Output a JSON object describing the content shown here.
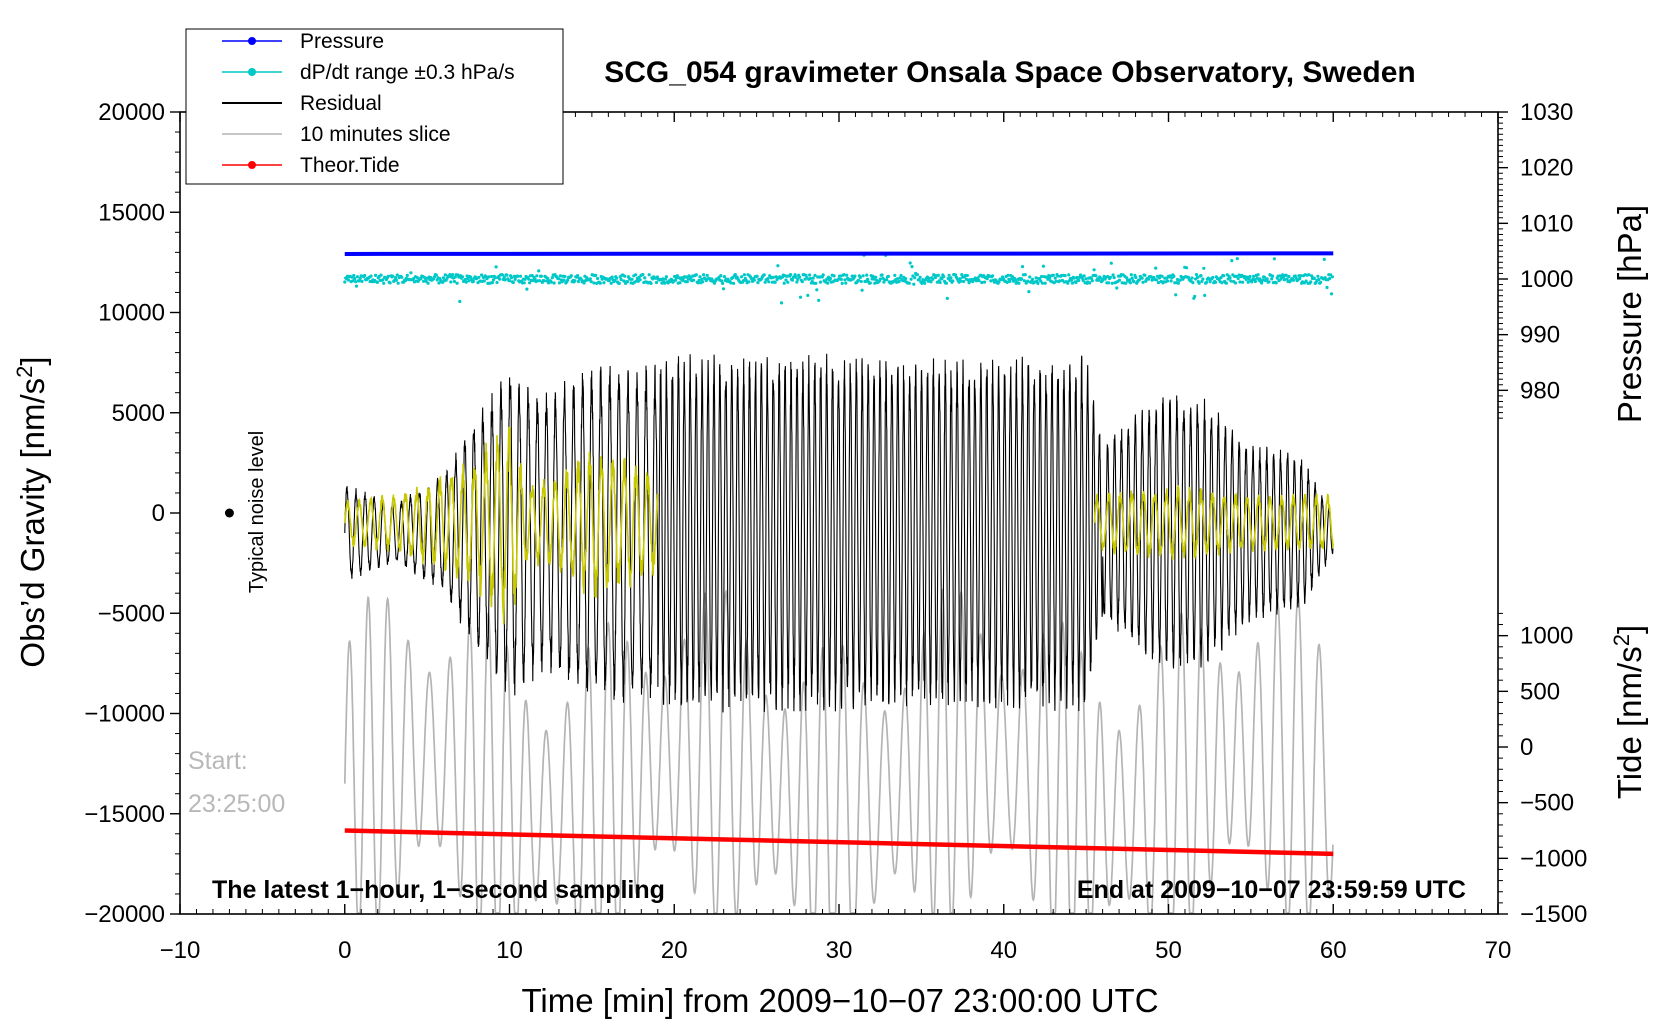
{
  "chart_data": {
    "type": "line",
    "title": "SCG_054 gravimeter Onsala Space Observatory, Sweden",
    "xlabel": "Time [min] from 2009−10−07 23:00:00 UTC",
    "ylabel_left": "Obs’d Gravity [nm/s²]",
    "ylabel_left_main": "Obs’d Gravity [nm/s",
    "ylabel_right_pressure": "Pressure [hPa]",
    "ylabel_right_tide_main": "Tide [nm/s",
    "superscript": "2",
    "close_bracket": "]",
    "xlim": [
      -10,
      70
    ],
    "ylim_left": [
      -20000,
      20000
    ],
    "ylim_pressure": [
      970,
      1030
    ],
    "ylim_tide": [
      -1500,
      1500
    ],
    "x_ticks": [
      "−10",
      "0",
      "10",
      "20",
      "30",
      "40",
      "50",
      "60",
      "70"
    ],
    "x_tick_values": [
      -10,
      0,
      10,
      20,
      30,
      40,
      50,
      60,
      70
    ],
    "y_left_ticks": [
      "20000",
      "15000",
      "10000",
      "5000",
      "0",
      "−5000",
      "−10000",
      "−15000",
      "−20000"
    ],
    "y_left_tick_values": [
      20000,
      15000,
      10000,
      5000,
      0,
      -5000,
      -10000,
      -15000,
      -20000
    ],
    "pressure_ticks": [
      "1030",
      "1020",
      "1010",
      "1000",
      "990",
      "980"
    ],
    "pressure_tick_values": [
      1030,
      1020,
      1010,
      1000,
      990,
      980
    ],
    "tide_ticks": [
      "1000",
      "500",
      "0",
      "−500",
      "−1000",
      "−1500"
    ],
    "tide_tick_values": [
      1000,
      500,
      0,
      -500,
      -1000,
      -1500
    ],
    "legend": [
      {
        "label": "Pressure",
        "color": "#0000ff",
        "marker": true
      },
      {
        "label": "dP/dt range ±0.3 hPa/s",
        "color": "#00c8c8",
        "marker": true
      },
      {
        "label": "Residual",
        "color": "#000000",
        "marker": false
      },
      {
        "label": "10 minutes slice",
        "color": "#b4b4b4",
        "marker": false
      },
      {
        "label": "Theor.Tide",
        "color": "#ff0000",
        "marker": true
      }
    ],
    "series": [
      {
        "name": "Pressure",
        "axis": "pressure",
        "x": [
          0,
          60
        ],
        "values": [
          1004.5,
          1004.6
        ],
        "color": "#0000ff"
      },
      {
        "name": "dP/dt range",
        "axis": "pressure",
        "x": [
          0,
          60
        ],
        "values": [
          1000,
          1000
        ],
        "spread_hpa": 0.8,
        "color": "#00c8c8"
      },
      {
        "name": "Residual",
        "axis": "gravity",
        "x_range": [
          0,
          60
        ],
        "envelope_x": [
          0,
          3,
          6,
          8,
          10,
          12,
          15,
          19,
          20,
          25,
          30,
          35,
          40,
          45,
          46,
          48,
          50,
          52,
          55,
          58,
          60
        ],
        "envelope": [
          2500,
          1500,
          3000,
          6000,
          8500,
          7000,
          8500,
          8500,
          9000,
          9000,
          9000,
          8800,
          8800,
          9000,
          4500,
          6000,
          7000,
          7000,
          4500,
          4000,
          1000
        ],
        "offset": -1000,
        "color": "#000000"
      },
      {
        "name": "Filtered",
        "axis": "gravity",
        "segments": [
          [
            0,
            19
          ],
          [
            45.5,
            60
          ]
        ],
        "envelope_x": [
          0,
          3,
          6,
          8,
          10,
          11,
          13,
          15,
          18,
          19,
          45.5,
          50,
          55,
          60
        ],
        "envelope": [
          1200,
          1500,
          2500,
          3500,
          5500,
          2000,
          2500,
          4000,
          3000,
          2500,
          1500,
          2000,
          1500,
          1500
        ],
        "color": "#c8c800"
      },
      {
        "name": "10 minutes slice",
        "axis": "gravity",
        "x_range": [
          0,
          60
        ],
        "center": -13500,
        "amplitude": 7500,
        "color": "#b4b4b4"
      },
      {
        "name": "Theor.Tide",
        "axis": "tide",
        "x": [
          0,
          60
        ],
        "values": [
          -750,
          -960
        ],
        "color": "#ff0000"
      }
    ],
    "typical_noise": {
      "x": -7,
      "y": 0,
      "label": "Typical noise level"
    },
    "start_label": "Start:",
    "start_time": "23:25:00",
    "note_left": "The latest 1−hour, 1−second sampling",
    "note_right": "End at 2009−10−07 23:59:59 UTC"
  }
}
